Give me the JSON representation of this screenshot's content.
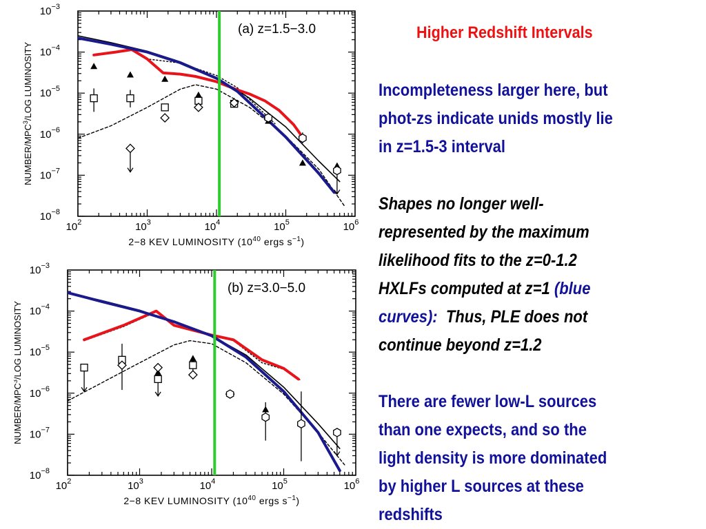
{
  "slide": {
    "title": "Higher Redshift Intervals",
    "paragraph1": [
      "Incompleteness larger here, but",
      "phot-zs indicate unids mostly lie",
      "in z=1.5-3 interval"
    ],
    "paragraph2": {
      "lines": [
        "Shapes no longer well-",
        "represented by the maximum",
        "likelihood fits to the z=0-1.2",
        "HXLFs computed at z=1 "
      ],
      "blue_part_1": "(blue",
      "blue_part_2": "curves):",
      "line5_rest": "  Thus, PLE does not",
      "line6": "continue beyond z=1.2"
    },
    "paragraph3": [
      "There are fewer low-L sources",
      "than one expects, and so the",
      "light density is more dominated",
      "by higher L sources at these",
      "redshifts"
    ]
  },
  "colors": {
    "title": "#ee1111",
    "blue_text": "#111199",
    "red_curve": "#e8141c",
    "blue_curve": "#1a1a8c",
    "green_line": "#2ecc2e",
    "black": "#000000"
  },
  "chart_data": [
    {
      "type": "line",
      "panel_label": "(a)  z=1.5−3.0",
      "xlabel": "2−8 KEV LUMINOSITY (10",
      "xlabel_sup": "40",
      "xlabel_tail": " ergs s",
      "xlabel_tail_sup": "−1",
      "xlabel_close": ")",
      "ylabel": "NUMBER/MPC",
      "ylabel_sup": "3",
      "ylabel_tail": "/LOG LUMINOSITY",
      "x_scale": "log",
      "y_scale": "log",
      "xlim": [
        100,
        1000000
      ],
      "ylim": [
        1e-08,
        0.001
      ],
      "x_ticks": [
        {
          "base": "10",
          "exp": "2",
          "v": 100
        },
        {
          "base": "10",
          "exp": "3",
          "v": 1000
        },
        {
          "base": "10",
          "exp": "4",
          "v": 10000
        },
        {
          "base": "10",
          "exp": "5",
          "v": 100000
        },
        {
          "base": "10",
          "exp": "6",
          "v": 1000000
        }
      ],
      "y_ticks": [
        {
          "base": "10",
          "exp": "−3",
          "v": 0.001
        },
        {
          "base": "10",
          "exp": "−4",
          "v": 0.0001
        },
        {
          "base": "10",
          "exp": "−5",
          "v": 1e-05
        },
        {
          "base": "10",
          "exp": "−6",
          "v": 1e-06
        },
        {
          "base": "10",
          "exp": "−7",
          "v": 1e-07
        },
        {
          "base": "10",
          "exp": "−8",
          "v": 1e-08
        }
      ],
      "vline_x": 11000,
      "series": [
        {
          "kind": "line",
          "color": "#000000",
          "width": 1.6,
          "dash": "",
          "x": [
            100,
            300,
            1000,
            3000,
            10000,
            30000,
            100000,
            300000,
            600000
          ],
          "y": [
            0.00025,
            0.00017,
            0.000105,
            5.8e-05,
            2.4e-05,
            7.5e-06,
            1.5e-06,
            2.2e-07,
            7e-08
          ]
        },
        {
          "kind": "line",
          "color": "#000000",
          "width": 1.4,
          "dash": "2,3",
          "x": [
            170,
            600,
            1000,
            3000,
            10000,
            20000,
            30000,
            70000
          ],
          "y": [
            8.8e-05,
            0.000115,
            6.8e-05,
            5.4e-05,
            2.7e-05,
            1.35e-05,
            7e-06,
            1.8e-06
          ]
        },
        {
          "kind": "line",
          "color": "#000000",
          "width": 1.4,
          "dash": "4,3",
          "x": [
            100,
            300,
            1000,
            3000,
            5000,
            10000,
            30000,
            100000,
            300000,
            700000
          ],
          "y": [
            8e-07,
            1.6e-06,
            4.5e-06,
            1.25e-05,
            1.6e-05,
            1.25e-05,
            4.5e-06,
            9e-07,
            1.4e-07,
            1.8e-08
          ]
        },
        {
          "kind": "line",
          "color": "#e8141c",
          "width": 4,
          "dash": "",
          "x": [
            170,
            350,
            600,
            1000,
            1700,
            3000,
            5000,
            10000,
            20000,
            30000,
            50000,
            80000,
            130000,
            170000
          ],
          "y": [
            8.5e-05,
            0.0001,
            0.000115,
            6.8e-05,
            3.1e-05,
            2.9e-05,
            2.55e-05,
            1.9e-05,
            1.2e-05,
            9.5e-06,
            6.5e-06,
            3.8e-06,
            1.7e-06,
            9e-07
          ]
        },
        {
          "kind": "line",
          "color": "#1a1a8c",
          "width": 4,
          "dash": "",
          "x": [
            100,
            300,
            1000,
            3000,
            10000,
            20000,
            30000,
            100000,
            300000,
            500000
          ],
          "y": [
            0.00022,
            0.000155,
            0.0001,
            5.5e-05,
            2.3e-05,
            1.1e-05,
            5.8e-06,
            8.5e-07,
            1.1e-07,
            3.8e-08
          ]
        }
      ],
      "points": [
        {
          "marker": "triangle",
          "x": 170,
          "y": 4.5e-05
        },
        {
          "marker": "triangle",
          "x": 570,
          "y": 2.8e-05
        },
        {
          "marker": "triangle",
          "x": 1800,
          "y": 2.2e-05
        },
        {
          "marker": "triangle",
          "x": 5500,
          "y": 9e-06
        },
        {
          "marker": "triangle",
          "x": 18000,
          "y": 6.4e-06
        },
        {
          "marker": "triangle",
          "x": 56000,
          "y": 2.1e-06
        },
        {
          "marker": "triangle",
          "x": 175000,
          "y": 2e-07
        },
        {
          "marker": "triangle",
          "x": 550000,
          "y": 1.7e-07
        },
        {
          "marker": "square",
          "x": 170,
          "y": 7.5e-06,
          "err_lo": 3.5e-06,
          "err_hi": 1.3e-05
        },
        {
          "marker": "square",
          "x": 570,
          "y": 7.5e-06,
          "err_lo": 4.5e-06,
          "err_hi": 1.2e-05
        },
        {
          "marker": "square",
          "x": 1800,
          "y": 4.5e-06
        },
        {
          "marker": "square",
          "x": 5500,
          "y": 6.5e-06
        },
        {
          "marker": "square",
          "x": 18000,
          "y": 5.5e-06
        },
        {
          "marker": "diamond",
          "x": 570,
          "y": 4.5e-07,
          "arrow_to": 1.2e-07
        },
        {
          "marker": "diamond",
          "x": 1800,
          "y": 2.5e-06
        },
        {
          "marker": "diamond",
          "x": 5500,
          "y": 4.5e-06
        },
        {
          "marker": "diamond",
          "x": 18000,
          "y": 5.8e-06
        },
        {
          "marker": "hexagon",
          "x": 56000,
          "y": 2.5e-06
        },
        {
          "marker": "hexagon",
          "x": 175000,
          "y": 8e-07,
          "err_lo": 6e-07,
          "err_hi": 1.1e-06
        },
        {
          "marker": "hexagon",
          "x": 550000,
          "y": 1.3e-07,
          "arrow_to": 3.5e-08
        }
      ]
    },
    {
      "type": "line",
      "panel_label": "(b)  z=3.0−5.0",
      "xlabel": "2−8 KEV LUMINOSITY (10",
      "xlabel_sup": "40",
      "xlabel_tail": " ergs s",
      "xlabel_tail_sup": "−1",
      "xlabel_close": ")",
      "ylabel": "NUMBER/MPC",
      "ylabel_sup": "3",
      "ylabel_tail": "/LOG LUMINOSITY",
      "x_scale": "log",
      "y_scale": "log",
      "xlim": [
        100,
        1000000
      ],
      "ylim": [
        1e-08,
        0.001
      ],
      "x_ticks": [
        {
          "base": "10",
          "exp": "2",
          "v": 100
        },
        {
          "base": "10",
          "exp": "3",
          "v": 1000
        },
        {
          "base": "10",
          "exp": "4",
          "v": 10000
        },
        {
          "base": "10",
          "exp": "5",
          "v": 100000
        },
        {
          "base": "10",
          "exp": "6",
          "v": 1000000
        }
      ],
      "y_ticks": [
        {
          "base": "10",
          "exp": "−3",
          "v": 0.001
        },
        {
          "base": "10",
          "exp": "−4",
          "v": 0.0001
        },
        {
          "base": "10",
          "exp": "−5",
          "v": 1e-05
        },
        {
          "base": "10",
          "exp": "−6",
          "v": 1e-06
        },
        {
          "base": "10",
          "exp": "−7",
          "v": 1e-07
        },
        {
          "base": "10",
          "exp": "−8",
          "v": 1e-08
        }
      ],
      "vline_x": 11000,
      "series": [
        {
          "kind": "line",
          "color": "#000000",
          "width": 1.6,
          "dash": "",
          "x": [
            100,
            300,
            1000,
            3000,
            10000,
            30000,
            100000,
            300000,
            600000
          ],
          "y": [
            0.00028,
            0.00018,
            0.000105,
            5.5e-05,
            2.5e-05,
            8.5e-06,
            1.4e-06,
            1.8e-07,
            4.5e-08
          ]
        },
        {
          "kind": "line",
          "color": "#000000",
          "width": 1.4,
          "dash": "2,3",
          "x": [
            170,
            600,
            1700,
            3000,
            10000,
            20000,
            50000,
            100000,
            170000
          ],
          "y": [
            1.9e-05,
            4.2e-05,
            9.5e-05,
            4.5e-05,
            2.6e-05,
            1.9e-05,
            5.5e-06,
            3.8e-06,
            2.1e-06
          ]
        },
        {
          "kind": "line",
          "color": "#000000",
          "width": 1.4,
          "dash": "4,3",
          "x": [
            100,
            300,
            1000,
            3000,
            5000,
            10000,
            30000,
            100000,
            300000,
            700000
          ],
          "y": [
            6.5e-07,
            1.8e-06,
            5.5e-06,
            1.5e-05,
            1.9e-05,
            1.6e-05,
            5.5e-06,
            9.5e-07,
            1.1e-07,
            1.8e-08
          ]
        },
        {
          "kind": "line",
          "color": "#e8141c",
          "width": 4,
          "dash": "",
          "x": [
            170,
            600,
            1700,
            3000,
            10000,
            20000,
            50000,
            100000,
            160000
          ],
          "y": [
            2e-05,
            4.5e-05,
            0.0001,
            4.5e-05,
            2.6e-05,
            2e-05,
            6.5e-06,
            4e-06,
            2.2e-06
          ]
        },
        {
          "kind": "line",
          "color": "#1a1a8c",
          "width": 4,
          "dash": "",
          "x": [
            100,
            300,
            1000,
            3000,
            10000,
            30000,
            100000,
            300000,
            600000
          ],
          "y": [
            0.00028,
            0.00017,
            0.0001,
            5.5e-05,
            2.5e-05,
            7.5e-06,
            1.1e-06,
            1.1e-07,
            1.3e-08
          ]
        }
      ],
      "points": [
        {
          "marker": "triangle",
          "x": 570,
          "y": 7e-06
        },
        {
          "marker": "triangle",
          "x": 1800,
          "y": 3.2e-06
        },
        {
          "marker": "triangle",
          "x": 5500,
          "y": 7e-06
        },
        {
          "marker": "triangle",
          "x": 56000,
          "y": 4e-07
        },
        {
          "marker": "square",
          "x": 170,
          "y": 4.2e-06,
          "arrow_to": 1.1e-06
        },
        {
          "marker": "square",
          "x": 570,
          "y": 6.5e-06,
          "err_lo": 1.2e-06,
          "err_hi": 1.6e-05
        },
        {
          "marker": "square",
          "x": 1800,
          "y": 2.2e-06,
          "arrow_to": 8.5e-07
        },
        {
          "marker": "square",
          "x": 5500,
          "y": 4.8e-06,
          "err_lo": 2.2e-06,
          "err_hi": 7.5e-06
        },
        {
          "marker": "diamond",
          "x": 570,
          "y": 4.8e-06
        },
        {
          "marker": "diamond",
          "x": 1800,
          "y": 4.2e-06
        },
        {
          "marker": "diamond",
          "x": 5500,
          "y": 2.8e-06
        },
        {
          "marker": "diamond",
          "x": 18000,
          "y": 9.5e-07
        },
        {
          "marker": "hexagon",
          "x": 18000,
          "y": 9.5e-07
        },
        {
          "marker": "hexagon",
          "x": 56000,
          "y": 2.6e-07,
          "err_lo": 7e-08,
          "err_hi": 6e-07
        },
        {
          "marker": "hexagon",
          "x": 175000,
          "y": 1.8e-07,
          "err_lo": 2.2e-08,
          "err_hi": 1.1e-06
        },
        {
          "marker": "hexagon",
          "x": 550000,
          "y": 1.1e-07,
          "arrow_to": 3e-08
        }
      ]
    }
  ]
}
